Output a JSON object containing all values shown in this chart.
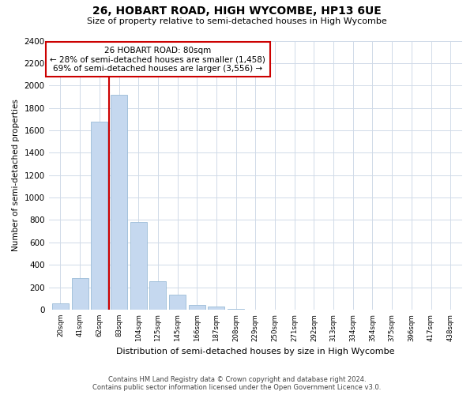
{
  "title": "26, HOBART ROAD, HIGH WYCOMBE, HP13 6UE",
  "subtitle": "Size of property relative to semi-detached houses in High Wycombe",
  "xlabel": "Distribution of semi-detached houses by size in High Wycombe",
  "ylabel": "Number of semi-detached properties",
  "footer1": "Contains HM Land Registry data © Crown copyright and database right 2024.",
  "footer2": "Contains public sector information licensed under the Open Government Licence v3.0.",
  "annotation_title": "26 HOBART ROAD: 80sqm",
  "annotation_line1": "← 28% of semi-detached houses are smaller (1,458)",
  "annotation_line2": "69% of semi-detached houses are larger (3,556) →",
  "bin_labels": [
    "20sqm",
    "41sqm",
    "62sqm",
    "83sqm",
    "104sqm",
    "125sqm",
    "145sqm",
    "166sqm",
    "187sqm",
    "208sqm",
    "229sqm",
    "250sqm",
    "271sqm",
    "292sqm",
    "313sqm",
    "334sqm",
    "354sqm",
    "375sqm",
    "396sqm",
    "417sqm",
    "438sqm"
  ],
  "counts": [
    55,
    285,
    1680,
    1920,
    780,
    255,
    130,
    40,
    28,
    5,
    0,
    0,
    0,
    0,
    0,
    0,
    0,
    0,
    0,
    0,
    0
  ],
  "bar_color": "#c5d8ef",
  "bar_edgecolor": "#9bbcd8",
  "property_line_color": "#cc0000",
  "annotation_box_color": "#cc0000",
  "grid_color": "#d0dae8",
  "background_color": "#ffffff",
  "ylim": [
    0,
    2400
  ],
  "yticks": [
    0,
    200,
    400,
    600,
    800,
    1000,
    1200,
    1400,
    1600,
    1800,
    2000,
    2200,
    2400
  ],
  "property_bin_index": 3
}
